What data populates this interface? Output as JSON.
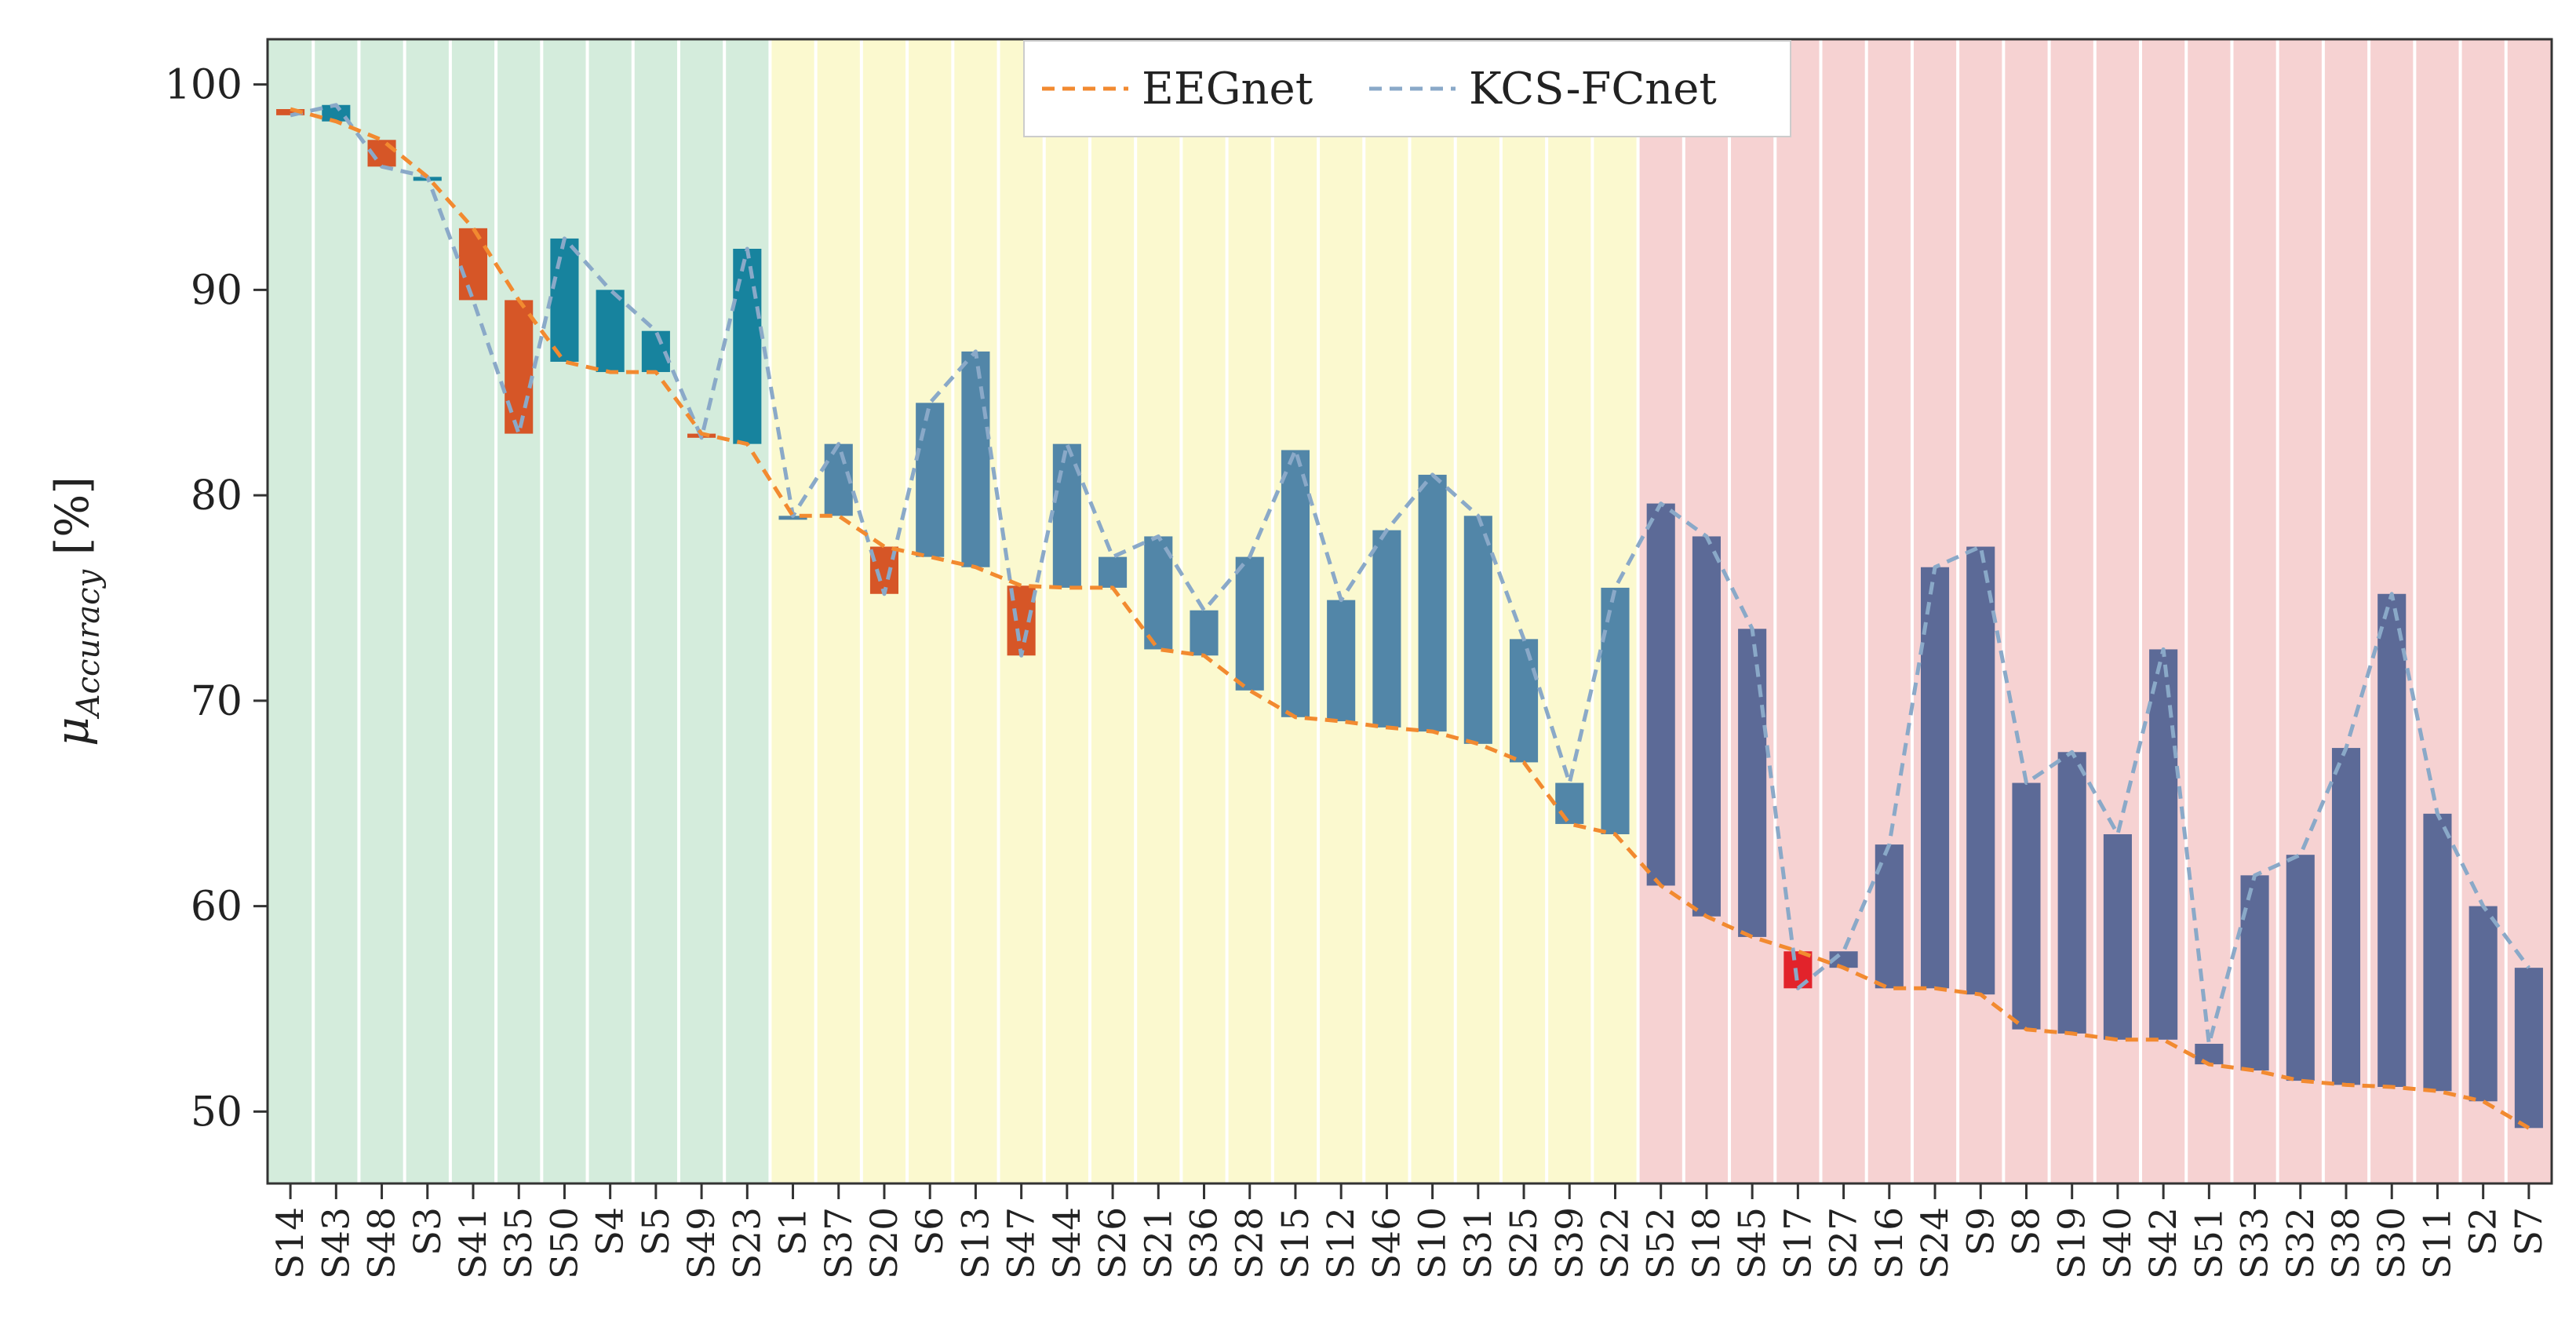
{
  "chart_data": {
    "type": "bar",
    "title": "",
    "xlabel": "",
    "ylabel_symbol": "μ",
    "ylabel_subscript": "Accuracy",
    "ylabel_unit": "[%]",
    "ylim": [
      46.5,
      102.2
    ],
    "yticks": [
      50,
      60,
      70,
      80,
      90,
      100
    ],
    "grid": false,
    "legend_position": "top-center",
    "categories": [
      "S14",
      "S43",
      "S48",
      "S3",
      "S41",
      "S35",
      "S50",
      "S4",
      "S5",
      "S49",
      "S23",
      "S1",
      "S37",
      "S20",
      "S6",
      "S13",
      "S47",
      "S44",
      "S26",
      "S21",
      "S36",
      "S28",
      "S15",
      "S12",
      "S46",
      "S10",
      "S31",
      "S25",
      "S39",
      "S22",
      "S52",
      "S18",
      "S45",
      "S17",
      "S27",
      "S16",
      "S24",
      "S9",
      "S8",
      "S19",
      "S40",
      "S42",
      "S51",
      "S33",
      "S32",
      "S38",
      "S30",
      "S11",
      "S2",
      "S7"
    ],
    "series": [
      {
        "name": "EEGnet",
        "style": "dashed",
        "color": "#f28a30",
        "values": [
          98.8,
          98.2,
          97.3,
          95.5,
          93.0,
          89.5,
          86.5,
          86.0,
          86.0,
          83.0,
          82.5,
          79.0,
          79.0,
          77.5,
          77.0,
          76.5,
          75.6,
          75.5,
          75.5,
          72.5,
          72.2,
          70.5,
          69.2,
          69.0,
          68.7,
          68.5,
          67.9,
          67.0,
          64.0,
          63.5,
          61.0,
          59.5,
          58.5,
          57.8,
          57.0,
          56.0,
          56.0,
          55.7,
          54.0,
          53.8,
          53.5,
          53.5,
          52.3,
          52.0,
          51.5,
          51.3,
          51.2,
          51.0,
          50.5,
          49.2
        ]
      },
      {
        "name": "KCS-FCnet",
        "style": "dashed",
        "color": "#8aa9c8",
        "values": [
          98.5,
          99.0,
          96.0,
          95.5,
          89.5,
          83.0,
          92.5,
          90.0,
          88.0,
          82.8,
          92.0,
          79.0,
          82.5,
          75.2,
          84.5,
          87.0,
          72.2,
          82.5,
          77.0,
          78.0,
          74.4,
          77.0,
          82.2,
          74.9,
          78.3,
          81.0,
          79.0,
          73.0,
          66.0,
          75.5,
          79.6,
          78.0,
          73.5,
          56.0,
          57.8,
          63.0,
          76.5,
          77.5,
          66.0,
          67.5,
          63.5,
          72.5,
          53.3,
          61.5,
          62.5,
          67.7,
          75.2,
          64.5,
          60.0,
          57.0
        ]
      }
    ],
    "bar_colors": {
      "improve_green_zone": "#17839e",
      "improve_yellow_zone": "#5286a8",
      "improve_red_zone": "#5c6a97",
      "decline": "#d65627",
      "decline_red_zone": "#e2232b"
    },
    "zones": [
      {
        "name": "green",
        "start": "S14",
        "end": "S23",
        "color": "#d4ecdc"
      },
      {
        "name": "yellow",
        "start": "S1",
        "end": "S22",
        "color": "#fbf9cf"
      },
      {
        "name": "red",
        "start": "S52",
        "end": "S7",
        "color": "#f6d2d2"
      }
    ]
  }
}
